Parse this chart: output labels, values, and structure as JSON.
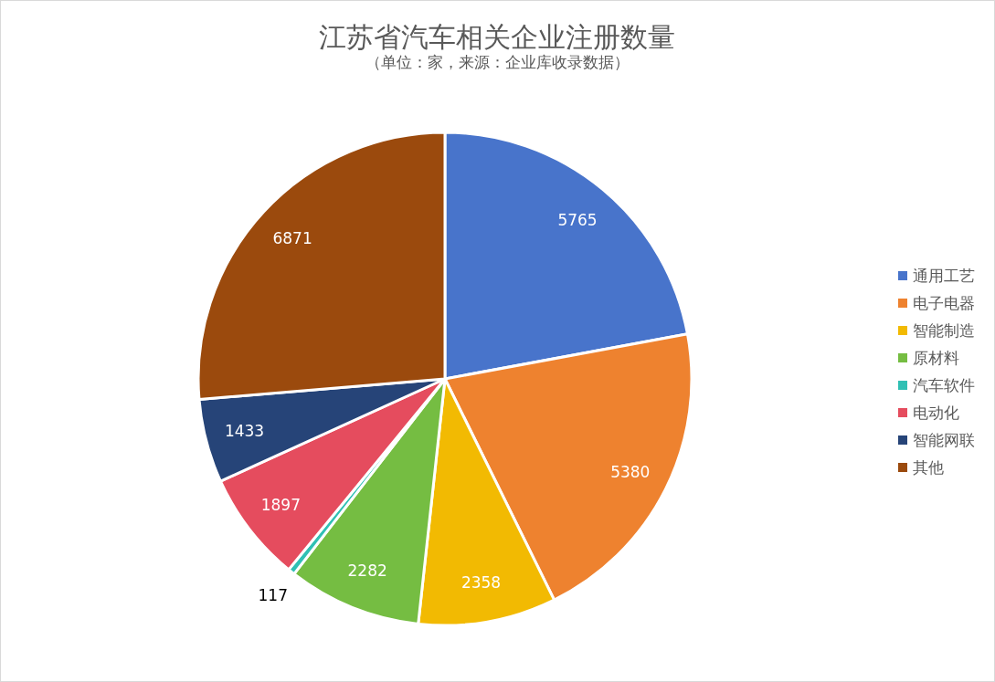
{
  "chart_data": {
    "type": "pie",
    "title": "江苏省汽车相关企业注册数量",
    "subtitle": "（单位：家，来源：企业库收录数据）",
    "categories": [
      "通用工艺",
      "电子电器",
      "智能制造",
      "原材料",
      "汽车软件",
      "电动化",
      "智能网联",
      "其他"
    ],
    "values": [
      5765,
      5380,
      2358,
      2282,
      117,
      1897,
      1433,
      6871
    ],
    "colors": [
      "#4874cb",
      "#ee822f",
      "#f2ba02",
      "#75bd42",
      "#30c0b4",
      "#e54c5e",
      "#264478",
      "#9b4a0d"
    ],
    "data_labels": true,
    "legend": "right"
  }
}
